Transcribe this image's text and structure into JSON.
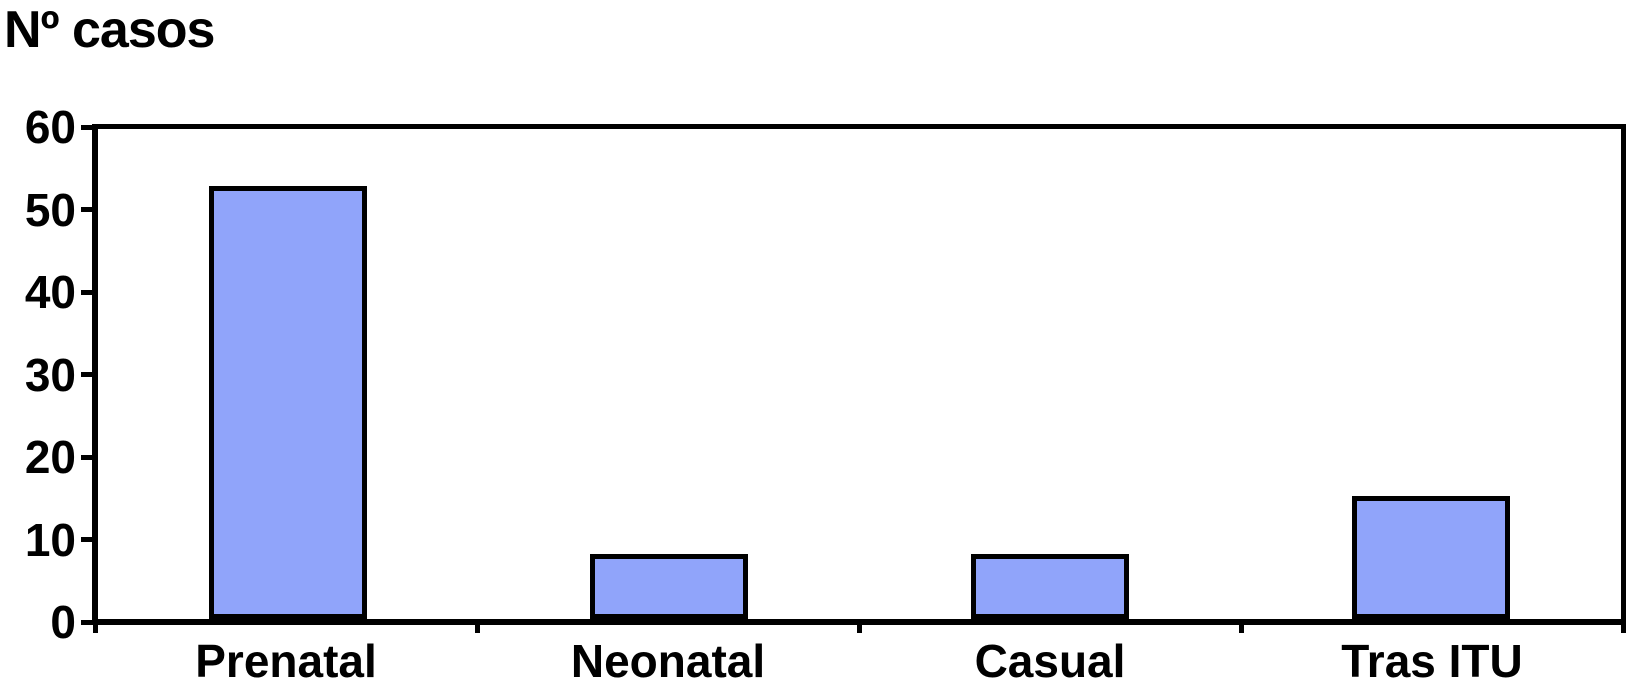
{
  "chart_data": {
    "type": "bar",
    "title": "Nº casos",
    "categories": [
      "Prenatal",
      "Neonatal",
      "Casual",
      "Tras ITU"
    ],
    "values": [
      53,
      8,
      8,
      15
    ],
    "ylim": [
      0,
      60
    ],
    "y_ticks": [
      0,
      10,
      20,
      30,
      40,
      50,
      60
    ],
    "xlabel": "",
    "ylabel": "Nº casos",
    "grid": "off",
    "legend": "none",
    "background_color": "#FFFFFF",
    "bar_fill_color": "#90A4FA",
    "bar_border_color": "#000000",
    "axis_color": "#000000",
    "text_color": "#000000"
  }
}
